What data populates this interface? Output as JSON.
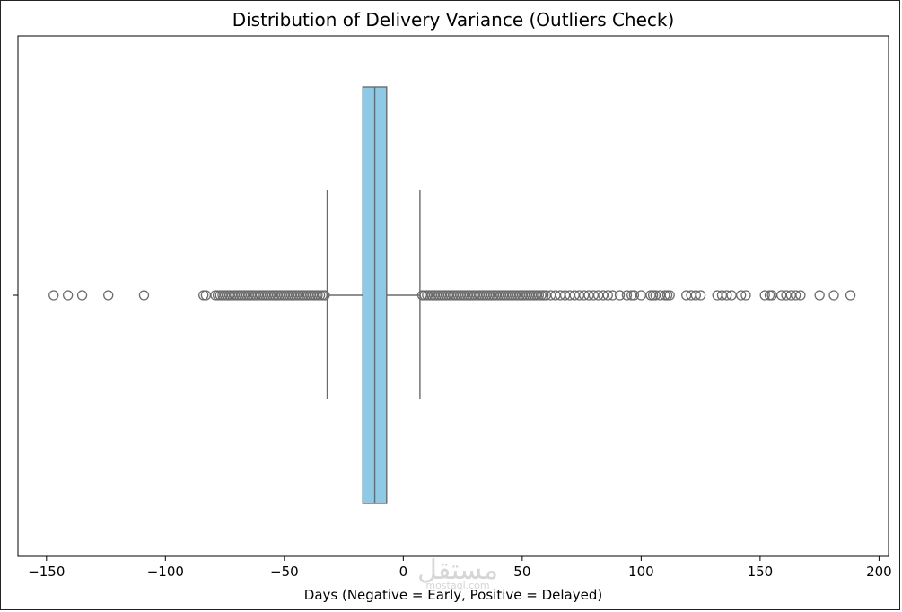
{
  "chart_data": {
    "type": "box",
    "orientation": "horizontal",
    "title": "Distribution of Delivery Variance (Outliers Check)",
    "xlabel": "Days (Negative = Early, Positive = Delayed)",
    "ylabel": "",
    "xlim": [
      -162,
      204
    ],
    "xticks": [
      -150,
      -100,
      -50,
      0,
      50,
      100,
      150,
      200
    ],
    "xtick_labels": [
      "−150",
      "−100",
      "−50",
      "0",
      "50",
      "100",
      "150",
      "200"
    ],
    "box": {
      "whisker_low": -32,
      "q1": -17,
      "median": -12,
      "q3": -7,
      "whisker_high": 7
    },
    "outliers": [
      -147,
      -141,
      -135,
      -124,
      -109,
      -84,
      -83,
      -79,
      -78,
      -77,
      -76,
      -75,
      -74,
      -73,
      -72,
      -71,
      -70,
      -69,
      -68,
      -67,
      -66,
      -65,
      -64,
      -63,
      -62,
      -61,
      -60,
      -59,
      -58,
      -57,
      -56,
      -55,
      -54,
      -53,
      -52,
      -51,
      -50,
      -49,
      -48,
      -47,
      -46,
      -45,
      -44,
      -43,
      -42,
      -41,
      -40,
      -39,
      -38,
      -37,
      -36,
      -35,
      -34,
      -33,
      8,
      9,
      10,
      11,
      12,
      13,
      14,
      15,
      16,
      17,
      18,
      19,
      20,
      21,
      22,
      23,
      24,
      25,
      26,
      27,
      28,
      29,
      30,
      31,
      32,
      33,
      34,
      35,
      36,
      37,
      38,
      39,
      40,
      41,
      42,
      43,
      44,
      45,
      46,
      47,
      48,
      49,
      50,
      51,
      52,
      53,
      54,
      55,
      56,
      57,
      58,
      59,
      60,
      62,
      64,
      66,
      68,
      70,
      72,
      74,
      76,
      78,
      80,
      82,
      84,
      86,
      88,
      91,
      94,
      96,
      97,
      100,
      104,
      105,
      106,
      108,
      110,
      111,
      112,
      119,
      121,
      123,
      125,
      132,
      134,
      136,
      138,
      142,
      144,
      152,
      154,
      155,
      159,
      161,
      163,
      165,
      167,
      175,
      181,
      188
    ],
    "colors": {
      "box_fill": "#8ecae6",
      "box_edge": "#6b6b6b",
      "whisker": "#6b6b6b",
      "outlier_edge": "#6b6b6b"
    },
    "grid": false,
    "legend": "none"
  },
  "watermark": {
    "text_main": "مستقل",
    "text_sub": "mostaql.com"
  }
}
